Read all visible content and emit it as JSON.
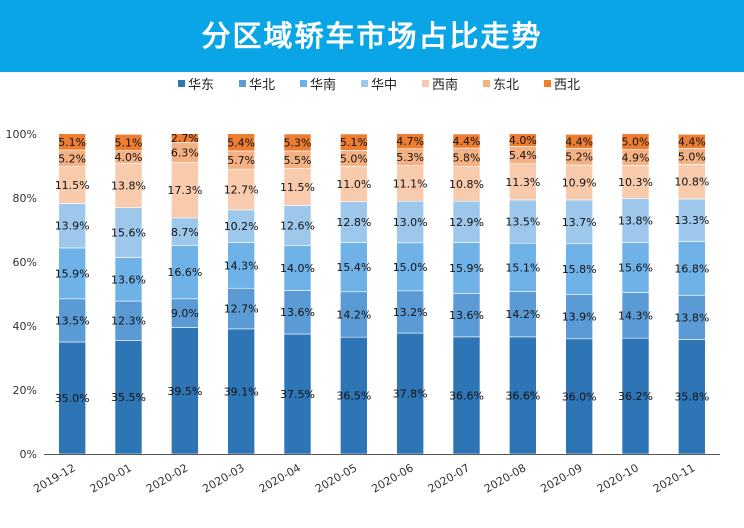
{
  "title": "分区域轿车市场占比走势",
  "chart_data": {
    "type": "bar",
    "stacked": true,
    "categories": [
      "2019-12",
      "2020-01",
      "2020-02",
      "2020-03",
      "2020-04",
      "2020-05",
      "2020-06",
      "2020-07",
      "2020-08",
      "2020-09",
      "2020-10",
      "2020-11"
    ],
    "series": [
      {
        "name": "华东",
        "color": "#2e75b6",
        "values": [
          35.0,
          35.5,
          39.5,
          39.1,
          37.5,
          36.5,
          37.8,
          36.6,
          36.6,
          36.0,
          36.2,
          35.8
        ]
      },
      {
        "name": "华北",
        "color": "#5b9bd5",
        "values": [
          13.5,
          12.3,
          9.0,
          12.7,
          13.6,
          14.2,
          13.2,
          13.6,
          14.2,
          13.9,
          14.3,
          13.8
        ]
      },
      {
        "name": "华南",
        "color": "#6fb2e8",
        "values": [
          15.9,
          13.6,
          16.6,
          14.3,
          14.0,
          15.4,
          15.0,
          15.9,
          15.1,
          15.8,
          15.6,
          16.8
        ]
      },
      {
        "name": "华中",
        "color": "#9dc8eb",
        "values": [
          13.9,
          15.6,
          8.7,
          10.2,
          12.6,
          12.8,
          13.0,
          12.9,
          13.5,
          13.7,
          13.8,
          13.3
        ]
      },
      {
        "name": "西南",
        "color": "#f8cbad",
        "values": [
          11.5,
          13.8,
          17.3,
          12.7,
          11.5,
          11.0,
          11.1,
          10.8,
          11.3,
          10.9,
          10.3,
          10.8
        ]
      },
      {
        "name": "东北",
        "color": "#f4b183",
        "values": [
          5.2,
          4.0,
          6.3,
          5.7,
          5.5,
          5.0,
          5.3,
          5.8,
          5.4,
          5.2,
          4.9,
          5.0
        ]
      },
      {
        "name": "西北",
        "color": "#ed7d31",
        "values": [
          5.1,
          5.1,
          2.7,
          5.4,
          5.3,
          5.1,
          4.7,
          4.4,
          4.0,
          4.4,
          5.0,
          4.4
        ]
      }
    ],
    "yticks": [
      "0%",
      "20%",
      "40%",
      "60%",
      "80%",
      "100%"
    ],
    "ylim": [
      0,
      100
    ],
    "legend_position": "top",
    "grid": false
  }
}
